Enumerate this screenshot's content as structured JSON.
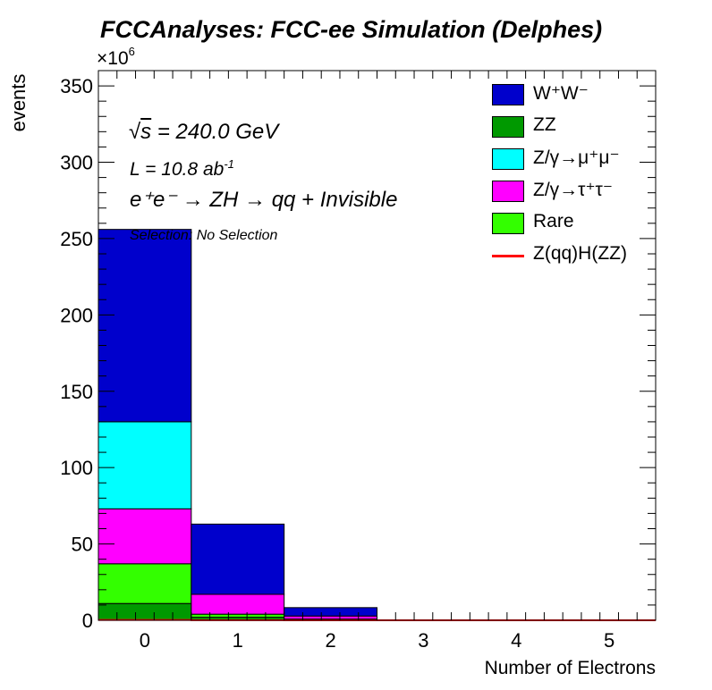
{
  "title": "FCCAnalyses: FCC-ee Simulation (Delphes)",
  "annotations": {
    "sqrt_s_symbol": "√",
    "sqrt_s_var": "s",
    "sqrt_s_value": " = 240.0 GeV",
    "lumi_text": "L = 10.8 ab",
    "lumi_sup": "-1",
    "process_text": "e⁺e⁻ → ZH → qq + Invisible",
    "selection_text": "Selection: No Selection"
  },
  "y_exponent": {
    "base": "×10",
    "power": "6"
  },
  "chart_data": {
    "type": "bar",
    "stacked": true,
    "title": "FCCAnalyses: FCC-ee Simulation (Delphes)",
    "xlabel": "Number of Electrons",
    "ylabel": "events",
    "y_scale_factor": 1000000,
    "xlim": [
      -0.5,
      5.5
    ],
    "ylim": [
      0,
      360
    ],
    "x_ticks": [
      "0",
      "1",
      "2",
      "3",
      "4",
      "5"
    ],
    "y_ticks": [
      "0",
      "50",
      "100",
      "150",
      "200",
      "250",
      "300",
      "350"
    ],
    "categories": [
      "0",
      "1",
      "2",
      "3",
      "4",
      "5"
    ],
    "series": [
      {
        "name": "ZZ",
        "color": "#009900",
        "values": [
          11,
          2,
          0.3,
          0,
          0,
          0
        ]
      },
      {
        "name": "Rare",
        "color": "#33ff00",
        "values": [
          26,
          2,
          0.5,
          0,
          0,
          0
        ]
      },
      {
        "name": "Z/γ→τ⁺τ⁻",
        "color": "#ff00ff",
        "values": [
          36,
          13,
          2,
          0,
          0,
          0
        ]
      },
      {
        "name": "Z/γ→μ⁺μ⁻",
        "color": "#00ffff",
        "values": [
          57,
          0,
          0,
          0,
          0,
          0
        ]
      },
      {
        "name": "W⁺W⁻",
        "color": "#0000cc",
        "values": [
          126,
          46,
          5.5,
          0,
          0,
          0
        ]
      }
    ],
    "signal": {
      "name": "Z(qq)H(ZZ)",
      "color": "#ff0000",
      "values": [
        0.2,
        0.05,
        0,
        0,
        0,
        0
      ]
    },
    "legend_position": "top-right",
    "legend": [
      {
        "label": "W⁺W⁻",
        "color": "#0000cc",
        "kind": "box"
      },
      {
        "label": "ZZ",
        "color": "#009900",
        "kind": "box"
      },
      {
        "label": "Z/γ→μ⁺μ⁻",
        "color": "#00ffff",
        "kind": "box"
      },
      {
        "label": "Z/γ→τ⁺τ⁻",
        "color": "#ff00ff",
        "kind": "box"
      },
      {
        "label": "Rare",
        "color": "#33ff00",
        "kind": "box"
      },
      {
        "label": "Z(qq)H(ZZ)",
        "color": "#ff0000",
        "kind": "line"
      }
    ]
  }
}
